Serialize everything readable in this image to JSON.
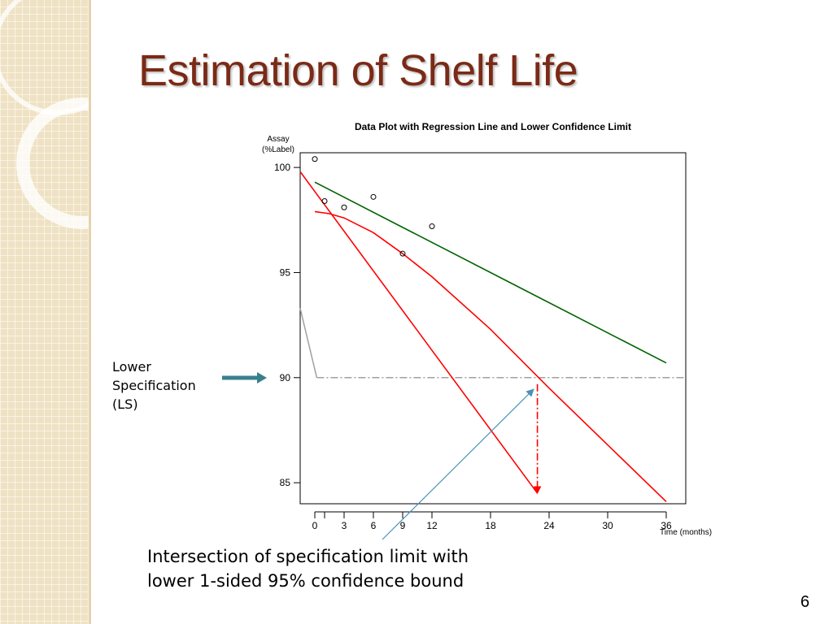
{
  "slide": {
    "title": "Estimation of Shelf Life",
    "page_number": "6",
    "side_label_lines": [
      "Lower",
      "Specification",
      "(LS)"
    ],
    "bottom_note_lines": [
      "Intersection of specification limit with",
      "lower 1-sided 95% confidence bound"
    ],
    "colors": {
      "title": "#7a2a16",
      "regression_line": "#006400",
      "confidence_bound": "#ff0000",
      "spec_line": "#a0a0a0",
      "arrow": "#3a7f8e",
      "pointer": "#4a90b8"
    }
  },
  "chart_data": {
    "type": "scatter",
    "title": "Data Plot with Regression Line and Lower Confidence Limit",
    "ylabel_lines": [
      "Assay",
      "(%Label)"
    ],
    "xlabel": "Time (months)",
    "xlim": [
      -1.5,
      38
    ],
    "ylim": [
      84,
      100.7
    ],
    "x_ticks": [
      0,
      3,
      6,
      9,
      12,
      18,
      24,
      30,
      36
    ],
    "y_ticks": [
      85,
      90,
      95,
      100
    ],
    "extra_x_tick_marks": [
      1
    ],
    "points": [
      {
        "x": 0,
        "y": 100.4
      },
      {
        "x": 1,
        "y": 98.4
      },
      {
        "x": 3,
        "y": 98.1
      },
      {
        "x": 6,
        "y": 98.6
      },
      {
        "x": 9,
        "y": 95.9
      },
      {
        "x": 12,
        "y": 97.2
      }
    ],
    "series": [
      {
        "kind": "regression_line",
        "color": "#006400",
        "x": [
          0,
          36
        ],
        "y": [
          99.3,
          90.7
        ]
      },
      {
        "kind": "lower_confidence_limit",
        "color": "#ff0000",
        "x": [
          0,
          1.5,
          3,
          6,
          9,
          12,
          18,
          24,
          30,
          36
        ],
        "y": [
          97.9,
          97.8,
          97.6,
          96.9,
          95.9,
          94.8,
          92.3,
          89.5,
          86.8,
          84.1
        ]
      },
      {
        "kind": "steep_line",
        "color": "#ff0000",
        "x": [
          -1.5,
          22.8
        ],
        "y": [
          99.8,
          84.5
        ]
      }
    ],
    "spec_limit": {
      "y": 90,
      "x_start": 0.2,
      "x_end": 38,
      "connector": {
        "x": [
          -1.5,
          0.2
        ],
        "y": [
          93.3,
          90
        ]
      }
    },
    "intersection": {
      "x": 22.8,
      "y": 90,
      "drop_to_y": 84.5
    }
  }
}
